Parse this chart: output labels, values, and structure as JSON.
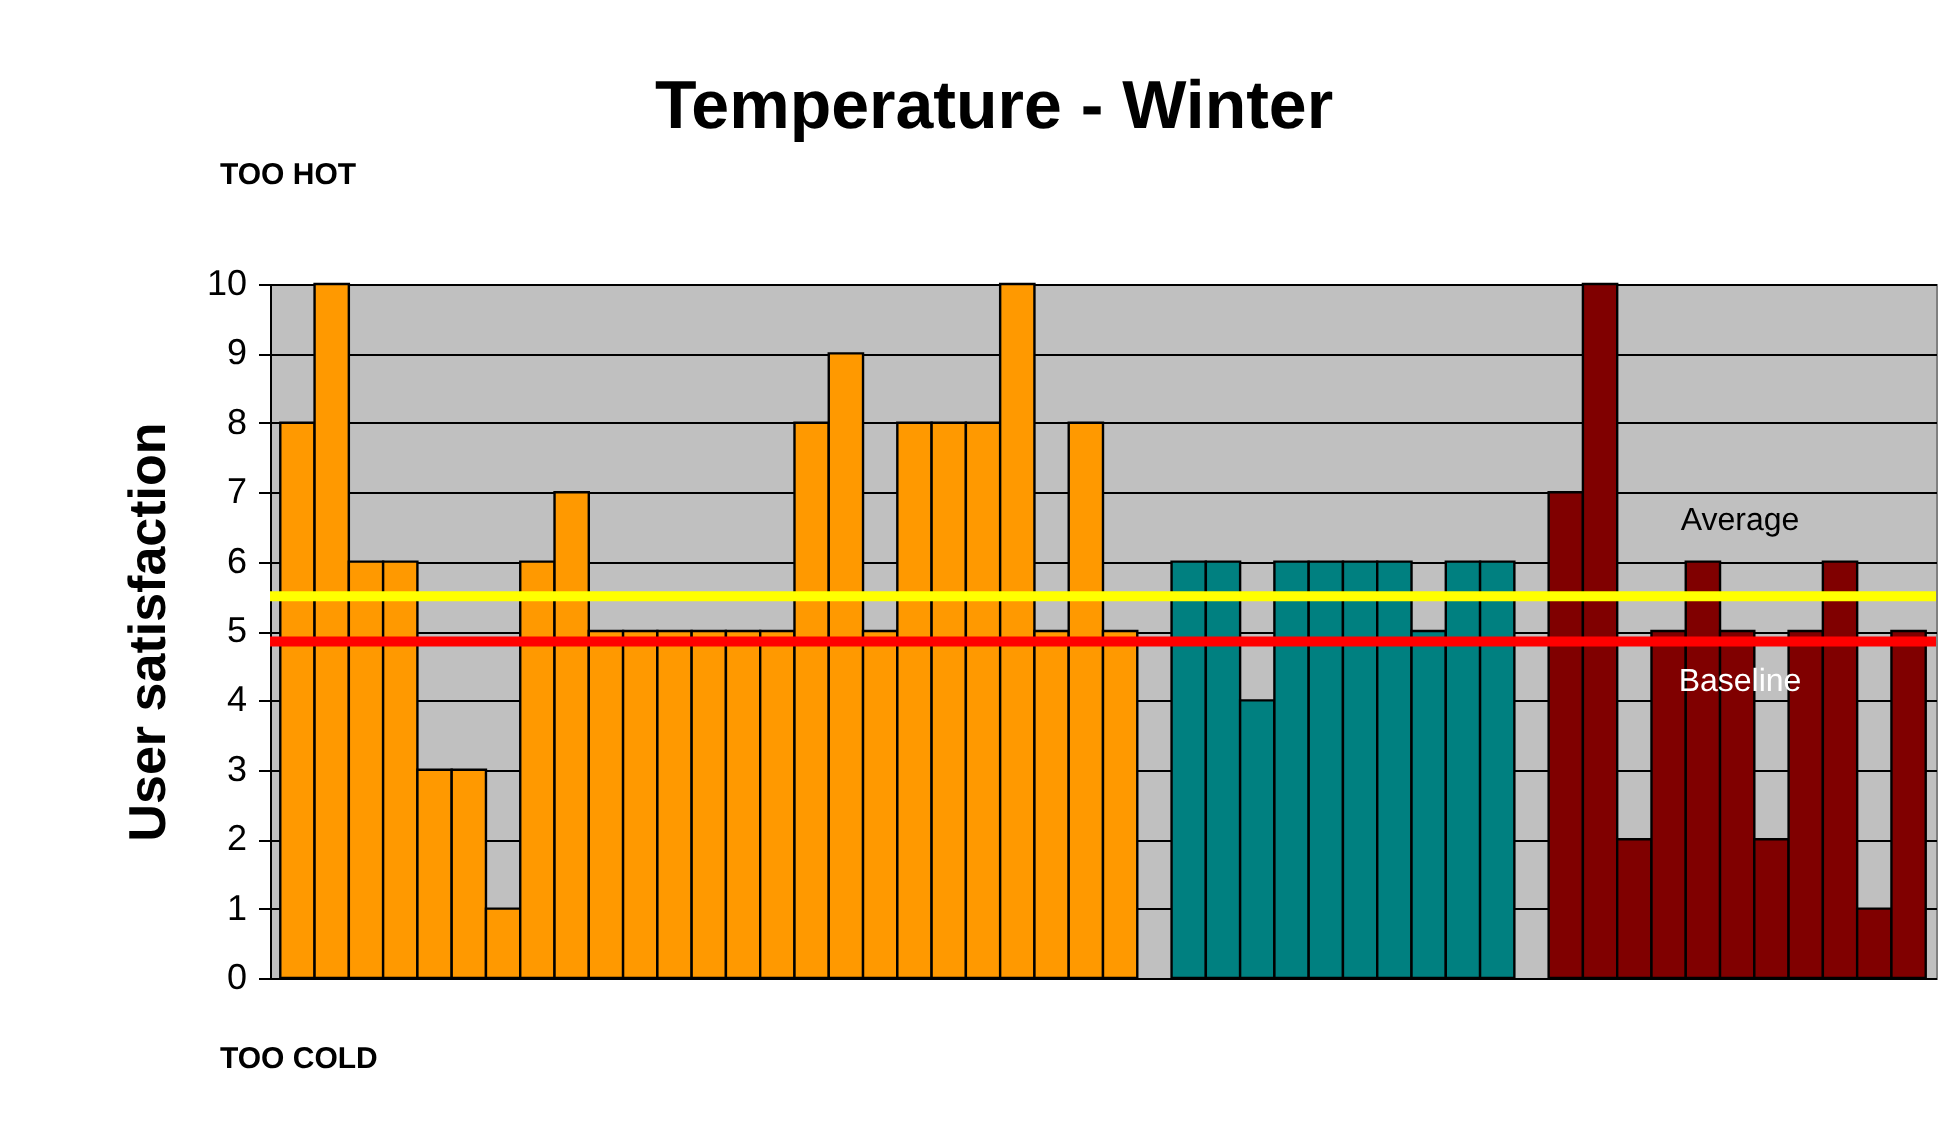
{
  "chart_data": {
    "type": "bar",
    "title": "Temperature - Winter",
    "ylabel": "User satisfaction",
    "categories": [
      null,
      null,
      null,
      null,
      null,
      null,
      null,
      null,
      null,
      null,
      null,
      null,
      null,
      null,
      null,
      null,
      null,
      null,
      null,
      null,
      null,
      null,
      null,
      null,
      null,
      null,
      null,
      null,
      null,
      null,
      null,
      null,
      null,
      null,
      null,
      null,
      null,
      null,
      null,
      null,
      null,
      null,
      null,
      null,
      null,
      null,
      null,
      null
    ],
    "series": [
      {
        "color": "#ff9900",
        "values": [
          8,
          10,
          6,
          6,
          3,
          3,
          1,
          6,
          7,
          5,
          5,
          5,
          5,
          5,
          5,
          8,
          9,
          5,
          8,
          8,
          8,
          10,
          5,
          8,
          5,
          null,
          null,
          null,
          null,
          null,
          null,
          null,
          null,
          null,
          null,
          null,
          null,
          null,
          null,
          null,
          null,
          null,
          null,
          null,
          null,
          null,
          null,
          null
        ]
      },
      {
        "color": "#008080",
        "values": [
          null,
          null,
          null,
          null,
          null,
          null,
          null,
          null,
          null,
          null,
          null,
          null,
          null,
          null,
          null,
          null,
          null,
          null,
          null,
          null,
          null,
          null,
          null,
          null,
          null,
          null,
          6,
          6,
          4,
          6,
          6,
          6,
          6,
          5,
          6,
          6,
          null,
          null,
          null,
          null,
          null,
          null,
          null,
          null,
          null,
          null,
          null,
          null
        ]
      },
      {
        "color": "#800000",
        "values": [
          null,
          null,
          null,
          null,
          null,
          null,
          null,
          null,
          null,
          null,
          null,
          null,
          null,
          null,
          null,
          null,
          null,
          null,
          null,
          null,
          null,
          null,
          null,
          null,
          null,
          null,
          null,
          null,
          null,
          null,
          null,
          null,
          null,
          null,
          null,
          null,
          null,
          7,
          10,
          2,
          5,
          6,
          5,
          2,
          5,
          6,
          1,
          5
        ]
      }
    ],
    "ylim": [
      0,
      10
    ],
    "yticks": [
      0,
      1,
      2,
      3,
      4,
      5,
      6,
      7,
      8,
      9,
      10
    ],
    "grid": "y",
    "legend": false,
    "ref_lines": [
      {
        "axis": "y",
        "value": 5.5,
        "label": "Average",
        "color": "#ffff00"
      },
      {
        "axis": "y",
        "value": 4.85,
        "label": "Baseline",
        "color": "#ff0000"
      }
    ],
    "annotations": [
      "TOO HOT",
      "TOO COLD"
    ]
  }
}
